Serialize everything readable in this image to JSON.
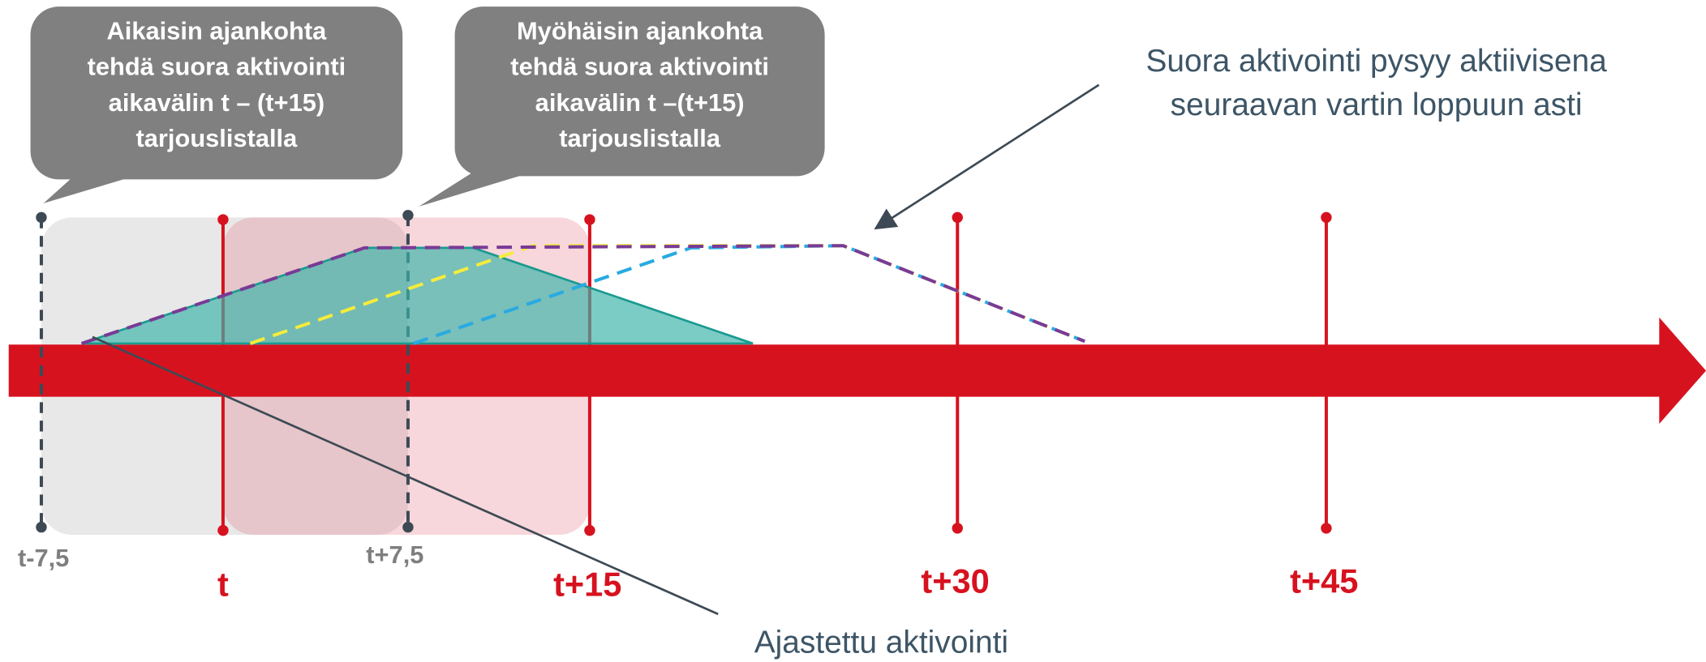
{
  "callouts": [
    {
      "lines": [
        "Aikaisin ajankohta",
        "tehdä suora aktivointi",
        "aikavälin t – (t+15)",
        "tarjouslistalla"
      ]
    },
    {
      "lines": [
        "Myöhäisin ajankohta",
        "tehdä suora aktivointi",
        "aikavälin t –(t+15)",
        "tarjouslistalla"
      ]
    }
  ],
  "annotations": {
    "direct": [
      "Suora aktivointi pysyy aktiivisena",
      "seuraavan vartin loppuun asti"
    ],
    "scheduled": "Ajastettu aktivointi"
  },
  "time_labels": [
    "t-7,5",
    "t",
    "t+7,5",
    "t+15",
    "t+30",
    "t+45"
  ]
}
